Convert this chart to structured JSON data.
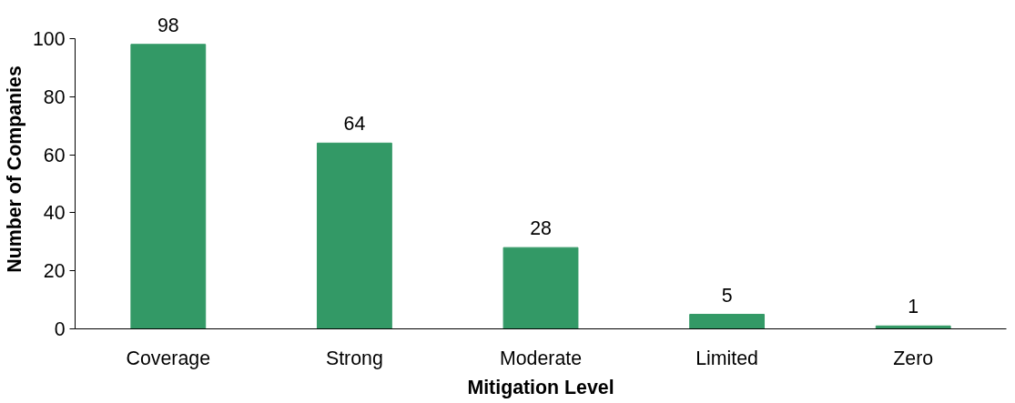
{
  "chart_data": {
    "type": "bar",
    "xlabel": "Mitigation Level",
    "ylabel": "Number of Companies",
    "categories": [
      "Coverage",
      "Strong",
      "Moderate",
      "Limited",
      "Zero"
    ],
    "values": [
      98,
      64,
      28,
      5,
      1
    ],
    "color": "#339966",
    "ylim": [
      0,
      100
    ],
    "yticks": [
      0,
      20,
      40,
      60,
      80,
      100
    ],
    "data_labels": true
  }
}
